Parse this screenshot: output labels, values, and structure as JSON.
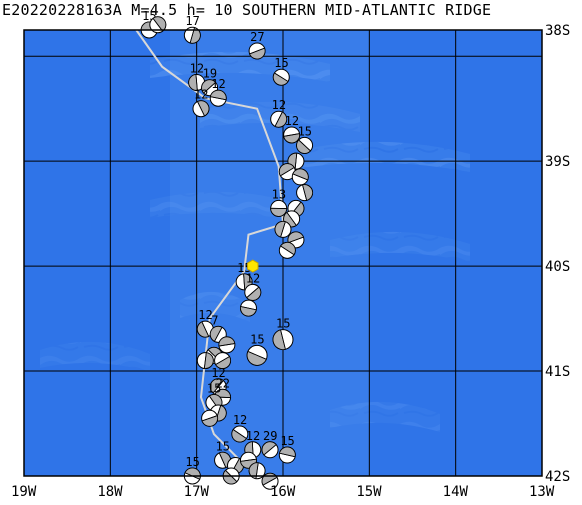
{
  "header": {
    "title": "E20220228163A   M=4.5  h=  10 SOUTHERN MID-ATLANTIC RIDGE"
  },
  "axes": {
    "lon_labels": [
      "19W",
      "18W",
      "17W",
      "16W",
      "15W",
      "14W",
      "13W"
    ],
    "lat_labels": [
      "38S",
      "39S",
      "40S",
      "41S",
      "42S"
    ]
  },
  "colors": {
    "ocean_deep": "#2f74e8",
    "ocean_shallow": "#4f8ff0",
    "ridge": "#6aa6f4",
    "grid": "#000000",
    "plate_boundary": "#d8d8d8",
    "epicenter": "#ffe600",
    "beachball_fill": "#b0b0b0"
  },
  "epicenter": {
    "lon": -16.35,
    "lat": -40.0
  },
  "plate_boundary": [
    [
      -17.7,
      -37.75
    ],
    [
      -17.4,
      -38.1
    ],
    [
      -16.9,
      -38.4
    ],
    [
      -16.3,
      -38.5
    ],
    [
      -16.05,
      -39.05
    ],
    [
      -16.0,
      -39.6
    ],
    [
      -16.4,
      -39.7
    ],
    [
      -16.45,
      -40.05
    ],
    [
      -16.85,
      -40.5
    ],
    [
      -16.95,
      -41.25
    ],
    [
      -16.8,
      -41.6
    ],
    [
      -16.5,
      -41.85
    ],
    [
      -16.3,
      -42.0
    ]
  ],
  "mechanisms": [
    {
      "lon": -17.55,
      "lat": -37.75,
      "label": "15"
    },
    {
      "lon": -17.45,
      "lat": -37.7,
      "label": ""
    },
    {
      "lon": -17.05,
      "lat": -37.8,
      "label": "17"
    },
    {
      "lon": -16.3,
      "lat": -37.95,
      "label": "27"
    },
    {
      "lon": -16.02,
      "lat": -38.2,
      "label": "15"
    },
    {
      "lon": -17.0,
      "lat": -38.25,
      "label": "12"
    },
    {
      "lon": -16.85,
      "lat": -38.3,
      "label": "19"
    },
    {
      "lon": -16.75,
      "lat": -38.4,
      "label": "12"
    },
    {
      "lon": -16.95,
      "lat": -38.5,
      "label": "12"
    },
    {
      "lon": -16.05,
      "lat": -38.6,
      "label": "12"
    },
    {
      "lon": -15.9,
      "lat": -38.75,
      "label": "12"
    },
    {
      "lon": -15.75,
      "lat": -38.85,
      "label": "15"
    },
    {
      "lon": -15.85,
      "lat": -39.0,
      "label": ""
    },
    {
      "lon": -15.95,
      "lat": -39.1,
      "label": ""
    },
    {
      "lon": -15.8,
      "lat": -39.15,
      "label": ""
    },
    {
      "lon": -15.75,
      "lat": -39.3,
      "label": ""
    },
    {
      "lon": -15.85,
      "lat": -39.45,
      "label": ""
    },
    {
      "lon": -16.05,
      "lat": -39.45,
      "label": "13"
    },
    {
      "lon": -15.9,
      "lat": -39.55,
      "label": ""
    },
    {
      "lon": -16.0,
      "lat": -39.65,
      "label": ""
    },
    {
      "lon": -15.85,
      "lat": -39.75,
      "label": ""
    },
    {
      "lon": -15.95,
      "lat": -39.85,
      "label": ""
    },
    {
      "lon": -16.45,
      "lat": -40.15,
      "label": "15"
    },
    {
      "lon": -16.35,
      "lat": -40.25,
      "label": "12"
    },
    {
      "lon": -16.4,
      "lat": -40.4,
      "label": ""
    },
    {
      "lon": -16.9,
      "lat": -40.6,
      "label": "12"
    },
    {
      "lon": -16.75,
      "lat": -40.65,
      "label": "7"
    },
    {
      "lon": -16.65,
      "lat": -40.75,
      "label": ""
    },
    {
      "lon": -16.8,
      "lat": -40.85,
      "label": ""
    },
    {
      "lon": -16.9,
      "lat": -40.9,
      "label": ""
    },
    {
      "lon": -16.7,
      "lat": -40.9,
      "label": ""
    },
    {
      "lon": -16.3,
      "lat": -40.85,
      "label": "15"
    },
    {
      "lon": -16.0,
      "lat": -40.7,
      "label": "15"
    },
    {
      "lon": -16.75,
      "lat": -41.15,
      "label": "12"
    },
    {
      "lon": -16.7,
      "lat": -41.25,
      "label": "22"
    },
    {
      "lon": -16.8,
      "lat": -41.3,
      "label": "15"
    },
    {
      "lon": -16.75,
      "lat": -41.4,
      "label": ""
    },
    {
      "lon": -16.85,
      "lat": -41.45,
      "label": ""
    },
    {
      "lon": -16.5,
      "lat": -41.6,
      "label": "12"
    },
    {
      "lon": -16.35,
      "lat": -41.75,
      "label": "12"
    },
    {
      "lon": -16.15,
      "lat": -41.75,
      "label": "29"
    },
    {
      "lon": -15.95,
      "lat": -41.8,
      "label": "15"
    },
    {
      "lon": -16.7,
      "lat": -41.85,
      "label": "15"
    },
    {
      "lon": -16.55,
      "lat": -41.9,
      "label": ""
    },
    {
      "lon": -16.4,
      "lat": -41.85,
      "label": ""
    },
    {
      "lon": -16.6,
      "lat": -42.0,
      "label": ""
    },
    {
      "lon": -16.3,
      "lat": -41.95,
      "label": ""
    },
    {
      "lon": -16.15,
      "lat": -42.05,
      "label": ""
    },
    {
      "lon": -17.05,
      "lat": -42.0,
      "label": "15"
    }
  ]
}
